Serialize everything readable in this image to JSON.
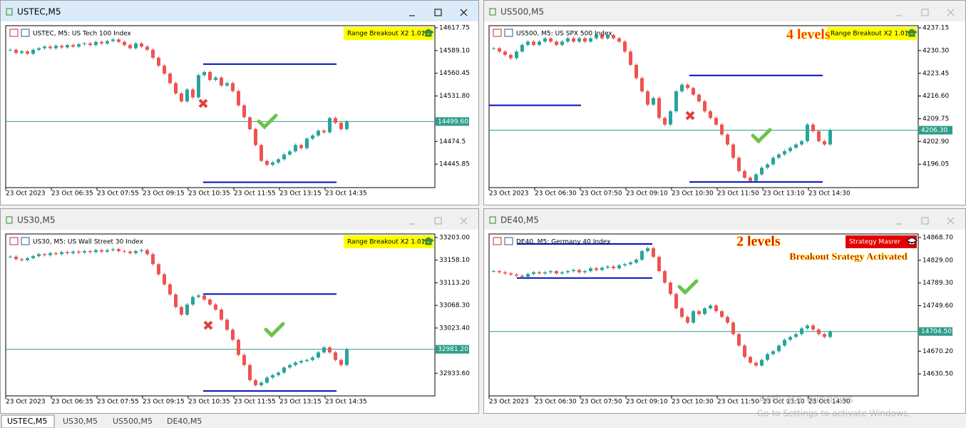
{
  "windows": [
    {
      "title": "USTEC,M5",
      "label": "USTEC, M5:  US Tech 100 Index",
      "badge": "Range Breakout X2 1.01",
      "ylim": [
        14416.3,
        14620.4
      ],
      "yticks": [
        14617.75,
        {
          "value": 14589.1,
          "label": "14589.10"
        },
        14560.45,
        {
          "value": 14531.8,
          "label": "14531.80"
        },
        14474.5,
        14445.85
      ],
      "price": {
        "value": 14499.6,
        "label": "14499.60"
      },
      "xticks": [
        "23 Oct 2023",
        "23 Oct 06:35",
        "23 Oct 07:55",
        "23 Oct 09:15",
        "23 Oct 10:35",
        "23 Oct 11:55",
        "23 Oct 13:15",
        "23 Oct 14:35"
      ],
      "levels": [
        14572,
        14423
      ],
      "closes": [
        14590,
        14586,
        14588,
        14585,
        14590,
        14592,
        14594,
        14592,
        14595,
        14593,
        14596,
        14594,
        14597,
        14598,
        14596,
        14600,
        14598,
        14601,
        14603,
        14600,
        14596,
        14592,
        14598,
        14594,
        14590,
        14580,
        14570,
        14560,
        14548,
        14535,
        14525,
        14540,
        14530,
        14558,
        14562,
        14552,
        14555,
        14545,
        14548,
        14538,
        14520,
        14505,
        14490,
        14470,
        14450,
        14445,
        14448,
        14452,
        14458,
        14462,
        14470,
        14466,
        14478,
        14482,
        14488,
        14486,
        14504,
        14498,
        14490,
        14499.6
      ]
    },
    {
      "title": "US500,M5",
      "label": "US500, M5:  US SPX 500 Index",
      "badge": "Range Breakout X2 1.01",
      "annotations": [
        "4 levels"
      ],
      "ylim": [
        4189.0,
        4237.8
      ],
      "yticks": [
        4237.15,
        {
          "value": 4230.3,
          "label": "4230.30"
        },
        4223.45,
        {
          "value": 4216.6,
          "label": "4216.60"
        },
        4209.75,
        {
          "value": 4202.9,
          "label": "4202.90"
        },
        4196.05
      ],
      "price": {
        "value": 4206.3,
        "label": "4206.30"
      },
      "xticks": [
        "23 Oct 2023",
        "23 Oct 06:30",
        "23 Oct 07:50",
        "23 Oct 09:10",
        "23 Oct 10:30",
        "23 Oct 11:50",
        "23 Oct 13:10",
        "23 Oct 14:30"
      ],
      "levels": [
        4222.8,
        4190.7,
        4213.8
      ],
      "closes": [
        4231,
        4230,
        4229,
        4228,
        4230,
        4232,
        4233,
        4232,
        4233,
        4234,
        4233,
        4232,
        4233,
        4234,
        4233,
        4234,
        4233,
        4234,
        4235,
        4234,
        4235,
        4234,
        4233,
        4230,
        4226,
        4222,
        4218,
        4214,
        4216,
        4210,
        4208,
        4212,
        4218,
        4220,
        4219,
        4217,
        4215,
        4212,
        4210,
        4208,
        4205,
        4202,
        4198,
        4194,
        4192,
        4191,
        4193,
        4195,
        4196,
        4198,
        4199,
        4200,
        4201,
        4202,
        4203,
        4208,
        4206,
        4203,
        4202,
        4206.3
      ]
    },
    {
      "title": "US30,M5",
      "label": "US30, M5:  US Wall Street 30 Index",
      "badge": "Range Breakout X2 1.01",
      "ylim": [
        32888.7,
        33210.0
      ],
      "yticks": [
        {
          "value": 33203,
          "label": "33203.00"
        },
        {
          "value": 33158.1,
          "label": "33158.10"
        },
        {
          "value": 33113.2,
          "label": "33113.20"
        },
        {
          "value": 33068.3,
          "label": "33068.30"
        },
        {
          "value": 33023.4,
          "label": "33023.40"
        },
        {
          "value": 32933.6,
          "label": "32933.60"
        }
      ],
      "price": {
        "value": 32981.2,
        "label": "32981.20"
      },
      "xticks": [
        "23 Oct 2023",
        "23 Oct 06:35",
        "23 Oct 07:55",
        "23 Oct 09:15",
        "23 Oct 10:35",
        "23 Oct 11:55",
        "23 Oct 13:15",
        "23 Oct 14:35"
      ],
      "levels": [
        33090.7,
        32898.5
      ],
      "closes": [
        33165,
        33160,
        33158,
        33162,
        33166,
        33170,
        33168,
        33172,
        33170,
        33174,
        33172,
        33175,
        33173,
        33176,
        33174,
        33178,
        33175,
        33178,
        33180,
        33176,
        33175,
        33172,
        33176,
        33178,
        33170,
        33150,
        33130,
        33110,
        33090,
        33065,
        33050,
        33070,
        33085,
        33088,
        33080,
        33070,
        33060,
        33040,
        33020,
        33000,
        32970,
        32950,
        32920,
        32910,
        32915,
        32925,
        32930,
        32935,
        32945,
        32950,
        32955,
        32958,
        32960,
        32965,
        32975,
        32985,
        32975,
        32960,
        32950,
        32981.2
      ]
    },
    {
      "title": "DE40,M5",
      "label": "DE40, M5:  Germany 40 Index",
      "badge": "Strategy Masrer",
      "annotations": [
        "2 levels",
        "Breakout Srategy Activated"
      ],
      "ylim": [
        14592.0,
        14874.9
      ],
      "yticks": [
        {
          "value": 14868.7,
          "label": "14868.70"
        },
        {
          "value": 14829,
          "label": "14829.00"
        },
        {
          "value": 14789.3,
          "label": "14789.30"
        },
        {
          "value": 14749.6,
          "label": "14749.60"
        },
        {
          "value": 14670.2,
          "label": "14670.20"
        },
        {
          "value": 14630.5,
          "label": "14630.50"
        }
      ],
      "price": {
        "value": 14704.5,
        "label": "14704.50"
      },
      "xticks": [
        "23 Oct 2023",
        "23 Oct 06:30",
        "23 Oct 07:50",
        "23 Oct 09:10",
        "23 Oct 10:30",
        "23 Oct 11:50",
        "23 Oct 13:10",
        "23 Oct 14:30"
      ],
      "levels": [
        14857.5,
        14798.0
      ],
      "closes": [
        14810,
        14808,
        14806,
        14804,
        14802,
        14800,
        14805,
        14808,
        14806,
        14808,
        14810,
        14806,
        14808,
        14810,
        14812,
        14808,
        14810,
        14815,
        14812,
        14816,
        14818,
        14815,
        14820,
        14822,
        14825,
        14830,
        14845,
        14850,
        14835,
        14810,
        14790,
        14770,
        14745,
        14730,
        14720,
        14740,
        14735,
        14745,
        14750,
        14740,
        14730,
        14720,
        14700,
        14680,
        14660,
        14650,
        14645,
        14655,
        14665,
        14670,
        14680,
        14690,
        14695,
        14700,
        14710,
        14715,
        14708,
        14700,
        14695,
        14704.5
      ]
    }
  ],
  "tabs": [
    "USTEC,M5",
    "US30,M5",
    "US500,M5",
    "DE40,M5"
  ],
  "watermark": [
    "Activate Windows",
    "Go to Settings to activate Windows."
  ]
}
